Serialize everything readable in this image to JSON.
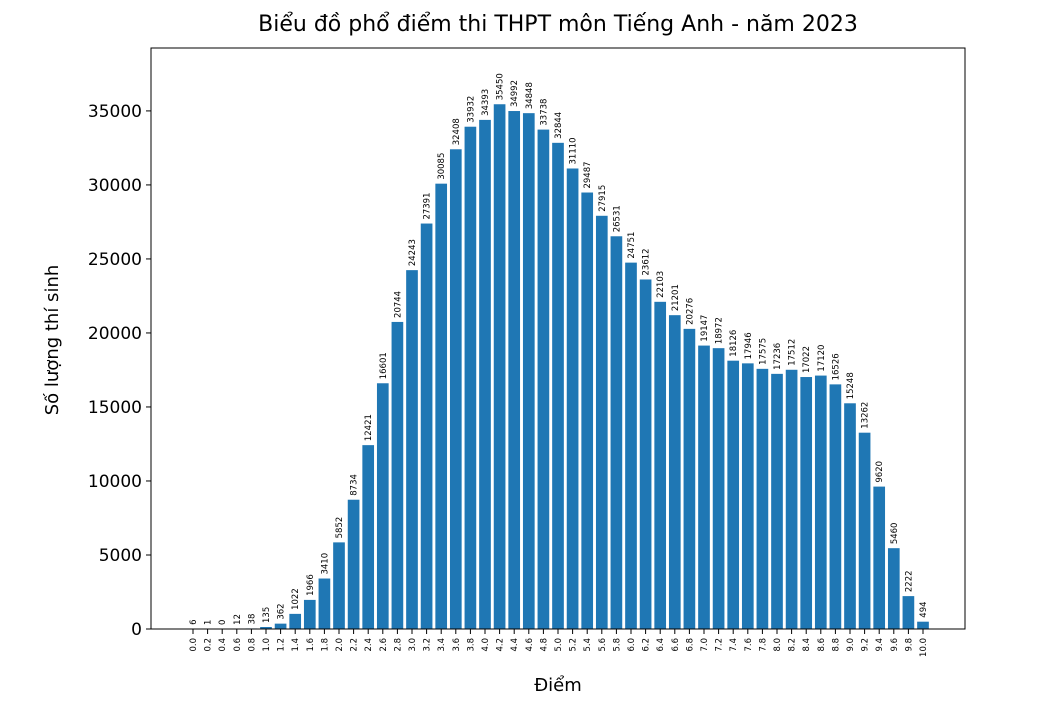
{
  "chart_data": {
    "type": "bar",
    "title": "Biểu đồ phổ điểm thi THPT môn Tiếng Anh - năm 2023",
    "xlabel": "Điểm",
    "ylabel": "Số lượng thí sinh",
    "color": "#1f77b4",
    "categories": [
      "0.0",
      "0.2",
      "0.4",
      "0.6",
      "0.8",
      "1.0",
      "1.2",
      "1.4",
      "1.6",
      "1.8",
      "2.0",
      "2.2",
      "2.4",
      "2.6",
      "2.8",
      "3.0",
      "3.2",
      "3.4",
      "3.6",
      "3.8",
      "4.0",
      "4.2",
      "4.4",
      "4.6",
      "4.8",
      "5.0",
      "5.2",
      "5.4",
      "5.6",
      "5.8",
      "6.0",
      "6.2",
      "6.4",
      "6.6",
      "6.8",
      "7.0",
      "7.2",
      "7.4",
      "7.6",
      "7.8",
      "8.0",
      "8.2",
      "8.4",
      "8.6",
      "8.8",
      "9.0",
      "9.2",
      "9.4",
      "9.6",
      "9.8",
      "10.0"
    ],
    "values": [
      6,
      1,
      0,
      12,
      38,
      135,
      362,
      1022,
      1966,
      3410,
      5852,
      8734,
      12421,
      16601,
      20744,
      24243,
      27391,
      30085,
      32408,
      33932,
      34393,
      35450,
      34992,
      34848,
      33738,
      32844,
      31110,
      29487,
      27915,
      26531,
      24751,
      23612,
      22103,
      21201,
      20276,
      19147,
      18972,
      18126,
      17946,
      17575,
      17236,
      17512,
      17022,
      17120,
      16526,
      15248,
      13262,
      9620,
      5460,
      2222,
      494
    ],
    "ylim": [
      0,
      39250
    ],
    "yticks": [
      0,
      5000,
      10000,
      15000,
      20000,
      25000,
      30000,
      35000
    ]
  }
}
